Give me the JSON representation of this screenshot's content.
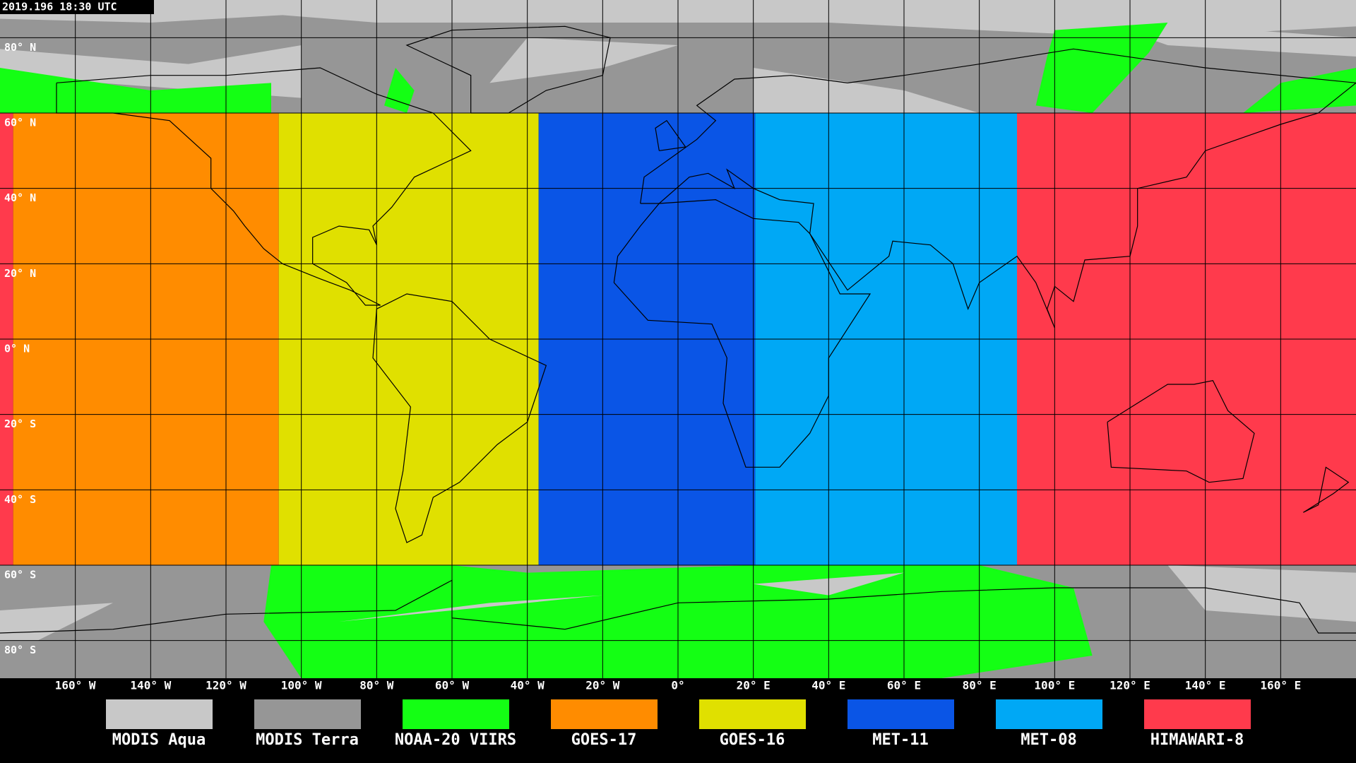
{
  "header": {
    "timestamp": "2019.196 18:30 UTC"
  },
  "map": {
    "latitude_labels": [
      "80° N",
      "60° N",
      "40° N",
      "20° N",
      "0° N",
      "20° S",
      "40° S",
      "60° S",
      "80° S"
    ],
    "longitude_labels": [
      "160° W",
      "140° W",
      "120° W",
      "100° W",
      "80° W",
      "60° W",
      "40° W",
      "20° W",
      "0°",
      "20° E",
      "40° E",
      "60° E",
      "80° E",
      "100° E",
      "120° E",
      "140° E",
      "160° E"
    ]
  },
  "legend": [
    {
      "label": "MODIS Aqua",
      "color": "#c8c8c8"
    },
    {
      "label": "MODIS Terra",
      "color": "#969696"
    },
    {
      "label": "NOAA-20 VIIRS",
      "color": "#14ff14"
    },
    {
      "label": "GOES-17",
      "color": "#ff8c00"
    },
    {
      "label": "GOES-16",
      "color": "#e0e000"
    },
    {
      "label": "MET-11",
      "color": "#0a55e6"
    },
    {
      "label": "MET-08",
      "color": "#00a8f5"
    },
    {
      "label": "HIMAWARI-8",
      "color": "#ff3a4c"
    }
  ]
}
